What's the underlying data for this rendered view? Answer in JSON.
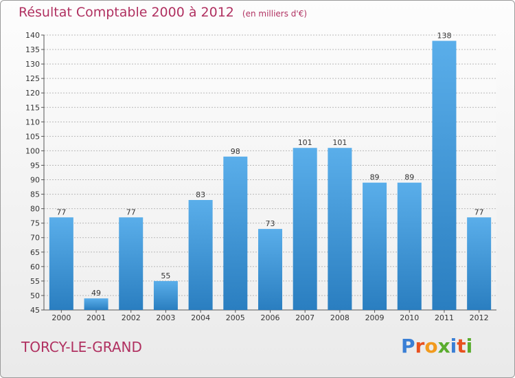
{
  "title": {
    "main": "Résultat Comptable 2000 à 2012",
    "unit": "(en milliers d'€)"
  },
  "place_name": "TORCY-LE-GRAND",
  "logo": {
    "text": "Proxiti",
    "letter_colors": [
      "#3a7fd5",
      "#e8511f",
      "#f29a1d",
      "#5aac2e",
      "#3a7fd5",
      "#e8511f",
      "#5aac2e"
    ]
  },
  "colors": {
    "title": "#b03060",
    "bar_top": "#5aaeea",
    "bar_bottom": "#2a7ec0",
    "grid": "#b8b8b8"
  },
  "chart_data": {
    "type": "bar",
    "categories": [
      "2000",
      "2001",
      "2002",
      "2003",
      "2004",
      "2005",
      "2006",
      "2007",
      "2008",
      "2009",
      "2010",
      "2011",
      "2012"
    ],
    "values": [
      77,
      49,
      77,
      55,
      83,
      98,
      73,
      101,
      101,
      89,
      89,
      138,
      77
    ],
    "ylim": [
      45,
      140
    ],
    "yticks": [
      45,
      50,
      55,
      60,
      65,
      70,
      75,
      80,
      85,
      90,
      95,
      100,
      105,
      110,
      115,
      120,
      125,
      130,
      135,
      140
    ],
    "grid": true,
    "data_labels": true
  }
}
